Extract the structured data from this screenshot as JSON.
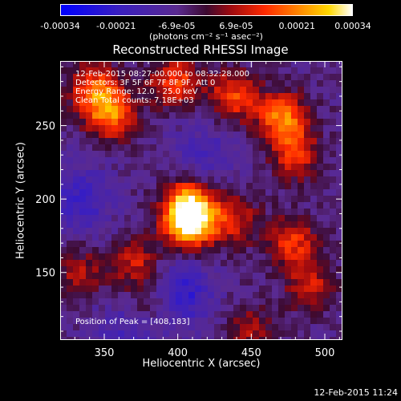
{
  "chart_data": {
    "type": "heatmap",
    "title": "Reconstructed RHESSI Image",
    "xlabel": "Heliocentric X (arcsec)",
    "ylabel": "Heliocentric Y (arcsec)",
    "xlim": [
      320,
      512
    ],
    "ylim": [
      104,
      294
    ],
    "xticks": [
      350,
      400,
      450,
      500
    ],
    "yticks": [
      150,
      200,
      250
    ],
    "colorbar": {
      "tick_labels": [
        "-0.00034",
        "-0.00021",
        "-6.9e-05",
        "6.9e-05",
        "0.00021",
        "0.00034"
      ],
      "tick_values": [
        -0.00034,
        -0.00021,
        -6.9e-05,
        6.9e-05,
        0.00021,
        0.00034
      ],
      "units": "(photons cm⁻² s⁻¹ asec⁻²)",
      "range": [
        -0.00034,
        0.00034
      ]
    },
    "annotations": {
      "time": "12-Feb-2015 08:27:00.000 to 08:32:28.000",
      "detectors": "Detectors: 3F 5F 6F 7F 8F 9F, Att 0",
      "energy": "Energy Range: 12.0 - 25.0 keV",
      "clean": "Clean     Total counts: 7.18E+03",
      "peak": "Position of Peak = [408,183]"
    },
    "sources": [
      {
        "x": 408,
        "y": 183,
        "value": 0.00034
      },
      {
        "x": 408,
        "y": 196,
        "value": 0.0003
      },
      {
        "x": 355,
        "y": 258,
        "value": 0.00025
      },
      {
        "x": 343,
        "y": 275,
        "value": 0.00022
      },
      {
        "x": 471,
        "y": 255,
        "value": 0.00026
      },
      {
        "x": 480,
        "y": 230,
        "value": 0.00018
      },
      {
        "x": 438,
        "y": 270,
        "value": 0.0002
      },
      {
        "x": 398,
        "y": 280,
        "value": 0.00021
      },
      {
        "x": 372,
        "y": 155,
        "value": 0.00016
      },
      {
        "x": 382,
        "y": 128,
        "value": 0.00013
      },
      {
        "x": 478,
        "y": 170,
        "value": 0.00019
      },
      {
        "x": 490,
        "y": 140,
        "value": 0.00015
      },
      {
        "x": 450,
        "y": 110,
        "value": 0.00012
      },
      {
        "x": 333,
        "y": 150,
        "value": 0.00012
      },
      {
        "x": 438,
        "y": 185,
        "value": 0.00016
      }
    ],
    "negative_regions": [
      {
        "x": 400,
        "y": 135,
        "value": -0.00018
      },
      {
        "x": 332,
        "y": 200,
        "value": -0.00014
      },
      {
        "x": 420,
        "y": 230,
        "value": -9e-05
      },
      {
        "x": 365,
        "y": 110,
        "value": -0.0001
      }
    ]
  },
  "footer": "12-Feb-2015 11:24"
}
